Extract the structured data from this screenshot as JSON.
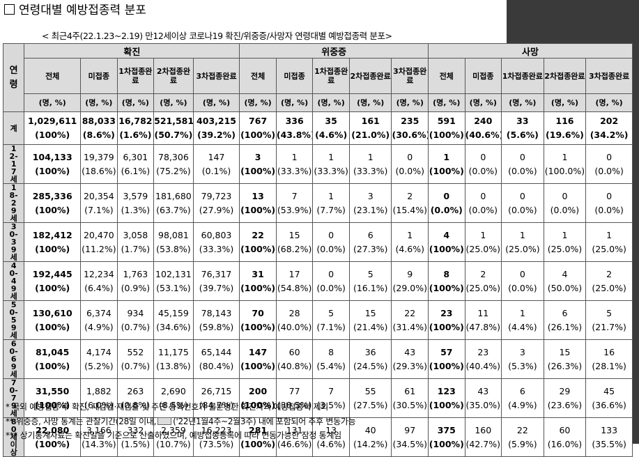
{
  "title": "연령대별 예방접종력 분포",
  "subtitle": "< 최근4주(22.1.23~2.19) 만12세이상 코로나19 확진/위중증/사망자 연령대별 예방접종력 분포>",
  "table": {
    "age_header": "연령",
    "groups": [
      "확진",
      "위중증",
      "사망"
    ],
    "columns": [
      "전체",
      "미접종",
      "1차접종완료",
      "2차접종완료",
      "3차접종완료"
    ],
    "unit": "(명, %)",
    "rows": [
      {
        "age": "계",
        "conf": [
          [
            "1,029,611",
            "(100%)"
          ],
          [
            "88,033",
            "(8.6%)"
          ],
          [
            "16,782",
            "(1.6%)"
          ],
          [
            "521,581",
            "(50.7%)"
          ],
          [
            "403,215",
            "(39.2%)"
          ]
        ],
        "sev": [
          [
            "767",
            "(100%)"
          ],
          [
            "336",
            "(43.8%)"
          ],
          [
            "35",
            "(4.6%)"
          ],
          [
            "161",
            "(21.0%)"
          ],
          [
            "235",
            "(30.6%)"
          ]
        ],
        "death": [
          [
            "591",
            "(100%)"
          ],
          [
            "240",
            "(40.6%)"
          ],
          [
            "33",
            "(5.6%)"
          ],
          [
            "116",
            "(19.6%)"
          ],
          [
            "202",
            "(34.2%)"
          ]
        ]
      },
      {
        "age": "12-17세",
        "conf": [
          [
            "104,133",
            "(100%)"
          ],
          [
            "19,379",
            "(18.6%)"
          ],
          [
            "6,301",
            "(6.1%)"
          ],
          [
            "78,306",
            "(75.2%)"
          ],
          [
            "147",
            "(0.1%)"
          ]
        ],
        "sev": [
          [
            "3",
            "(100%)"
          ],
          [
            "1",
            "(33.3%)"
          ],
          [
            "1",
            "(33.3%)"
          ],
          [
            "1",
            "(33.3%)"
          ],
          [
            "0",
            "(0.0%)"
          ]
        ],
        "death": [
          [
            "1",
            "(100%)"
          ],
          [
            "0",
            "(0.0%)"
          ],
          [
            "0",
            "(0.0%)"
          ],
          [
            "1",
            "(100.0%)"
          ],
          [
            "0",
            "(0.0%)"
          ]
        ]
      },
      {
        "age": "18-29세",
        "conf": [
          [
            "285,336",
            "(100%)"
          ],
          [
            "20,354",
            "(7.1%)"
          ],
          [
            "3,579",
            "(1.3%)"
          ],
          [
            "181,680",
            "(63.7%)"
          ],
          [
            "79,723",
            "(27.9%)"
          ]
        ],
        "sev": [
          [
            "13",
            "(100%)"
          ],
          [
            "7",
            "(53.9%)"
          ],
          [
            "1",
            "(7.7%)"
          ],
          [
            "3",
            "(23.1%)"
          ],
          [
            "2",
            "(15.4%)"
          ]
        ],
        "death": [
          [
            "0",
            "(0.0%)"
          ],
          [
            "0",
            "(0.0%)"
          ],
          [
            "0",
            "(0.0%)"
          ],
          [
            "0",
            "(0.0%)"
          ],
          [
            "0",
            "(0.0%)"
          ]
        ]
      },
      {
        "age": "30-39세",
        "conf": [
          [
            "182,412",
            "(100%)"
          ],
          [
            "20,470",
            "(11.2%)"
          ],
          [
            "3,058",
            "(1.7%)"
          ],
          [
            "98,081",
            "(53.8%)"
          ],
          [
            "60,803",
            "(33.3%)"
          ]
        ],
        "sev": [
          [
            "22",
            "(100%)"
          ],
          [
            "15",
            "(68.2%)"
          ],
          [
            "0",
            "(0.0%)"
          ],
          [
            "6",
            "(27.3%)"
          ],
          [
            "1",
            "(4.6%)"
          ]
        ],
        "death": [
          [
            "4",
            "(100%)"
          ],
          [
            "1",
            "(25.0%)"
          ],
          [
            "1",
            "(25.0%)"
          ],
          [
            "1",
            "(25.0%)"
          ],
          [
            "1",
            "(25.0%)"
          ]
        ]
      },
      {
        "age": "40-49세",
        "conf": [
          [
            "192,445",
            "(100%)"
          ],
          [
            "12,234",
            "(6.4%)"
          ],
          [
            "1,763",
            "(0.9%)"
          ],
          [
            "102,131",
            "(53.1%)"
          ],
          [
            "76,317",
            "(39.7%)"
          ]
        ],
        "sev": [
          [
            "31",
            "(100%)"
          ],
          [
            "17",
            "(54.8%)"
          ],
          [
            "0",
            "(0.0%)"
          ],
          [
            "5",
            "(16.1%)"
          ],
          [
            "9",
            "(29.0%)"
          ]
        ],
        "death": [
          [
            "8",
            "(100%)"
          ],
          [
            "2",
            "(25.0%)"
          ],
          [
            "0",
            "(0.0%)"
          ],
          [
            "4",
            "(50.0%)"
          ],
          [
            "2",
            "(25.0%)"
          ]
        ]
      },
      {
        "age": "50-59세",
        "conf": [
          [
            "130,610",
            "(100%)"
          ],
          [
            "6,374",
            "(4.9%)"
          ],
          [
            "934",
            "(0.7%)"
          ],
          [
            "45,159",
            "(34.6%)"
          ],
          [
            "78,143",
            "(59.8%)"
          ]
        ],
        "sev": [
          [
            "70",
            "(100%)"
          ],
          [
            "28",
            "(40.0%)"
          ],
          [
            "5",
            "(7.1%)"
          ],
          [
            "15",
            "(21.4%)"
          ],
          [
            "22",
            "(31.4%)"
          ]
        ],
        "death": [
          [
            "23",
            "(100%)"
          ],
          [
            "11",
            "(47.8%)"
          ],
          [
            "1",
            "(4.4%)"
          ],
          [
            "6",
            "(26.1%)"
          ],
          [
            "5",
            "(21.7%)"
          ]
        ]
      },
      {
        "age": "60-69세",
        "conf": [
          [
            "81,045",
            "(100%)"
          ],
          [
            "4,174",
            "(5.2%)"
          ],
          [
            "552",
            "(0.7%)"
          ],
          [
            "11,175",
            "(13.8%)"
          ],
          [
            "65,144",
            "(80.4%)"
          ]
        ],
        "sev": [
          [
            "147",
            "(100%)"
          ],
          [
            "60",
            "(40.8%)"
          ],
          [
            "8",
            "(5.4%)"
          ],
          [
            "36",
            "(24.5%)"
          ],
          [
            "43",
            "(29.3%)"
          ]
        ],
        "death": [
          [
            "57",
            "(100%)"
          ],
          [
            "23",
            "(40.4%)"
          ],
          [
            "3",
            "(5.3%)"
          ],
          [
            "15",
            "(26.3%)"
          ],
          [
            "16",
            "(28.1%)"
          ]
        ]
      },
      {
        "age": "70-79세",
        "conf": [
          [
            "31,550",
            "(100%)"
          ],
          [
            "1,882",
            "(6.0%)"
          ],
          [
            "263",
            "(0.8%)"
          ],
          [
            "2,690",
            "(8.5%)"
          ],
          [
            "26,715",
            "(84.7%)"
          ]
        ],
        "sev": [
          [
            "200",
            "(100%)"
          ],
          [
            "77",
            "(38.5%)"
          ],
          [
            "7",
            "(3.5%)"
          ],
          [
            "55",
            "(27.5%)"
          ],
          [
            "61",
            "(30.5%)"
          ]
        ],
        "death": [
          [
            "123",
            "(100%)"
          ],
          [
            "43",
            "(35.0%)"
          ],
          [
            "6",
            "(4.9%)"
          ],
          [
            "29",
            "(23.6%)"
          ],
          [
            "45",
            "(36.6%)"
          ]
        ]
      },
      {
        "age": "80세이상",
        "conf": [
          [
            "22,080",
            "(100%)"
          ],
          [
            "3,166",
            "(14.3%)"
          ],
          [
            "332",
            "(1.5%)"
          ],
          [
            "2,359",
            "(10.7%)"
          ],
          [
            "16,223",
            "(73.5%)"
          ]
        ],
        "sev": [
          [
            "281",
            "(100%)"
          ],
          [
            "131",
            "(46.6%)"
          ],
          [
            "13",
            "(4.6%)"
          ],
          [
            "40",
            "(14.2%)"
          ],
          [
            "97",
            "(34.5%)"
          ]
        ],
        "death": [
          [
            "375",
            "(100%)"
          ],
          [
            "160",
            "(42.7%)"
          ],
          [
            "22",
            "(5.9%)"
          ],
          [
            "60",
            "(16.0%)"
          ],
          [
            "133",
            "(35.5%)"
          ]
        ]
      }
    ]
  },
  "notes": {
    "n1": "* 국외 예방접종 후 확진, 재감염·재검출 및 주민 등록번호가 불분명한 확진자의 예방접종력 제외",
    "n2_a": "** 위중증, 사망 통계는 관찰기간(28일 이내,",
    "n2_b": "('22년1월4주~2월3주) 내에 포함되어 추후 변동가능",
    "n3": "*** 상기통계자료는 확진일을 기준으로 산출하였으며, 예방접종등록에 따라 변동가능한 잠정 통계임"
  }
}
